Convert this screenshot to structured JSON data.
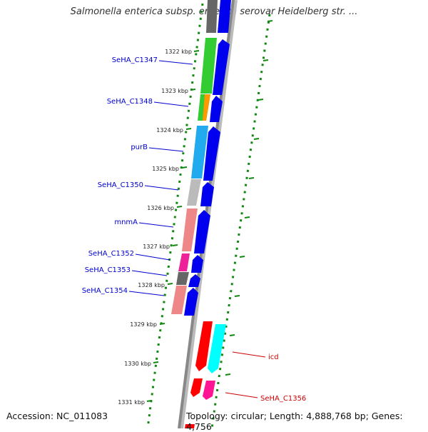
{
  "title": "Salmonella enterica subsp. enterica serovar Heidelberg str. ...",
  "footer": {
    "accession": "Accession: NC_011083",
    "summary": "Topology: circular; Length: 4,888,768 bp; Genes: 4,756"
  },
  "colors": {
    "forward_label": "#0000cc",
    "reverse_label": "#cc0000",
    "forward_strand": "#0000ee",
    "reverse_strand_red": "#ff0000",
    "reverse_strand_cyan": "#00ffff",
    "reverse_strand_magenta": "#ff1493",
    "backbone": "#888888",
    "ticks": "#118811"
  },
  "scale_ticks": [
    "1322 kbp",
    "1323 kbp",
    "1324 kbp",
    "1325 kbp",
    "1326 kbp",
    "1327 kbp",
    "1328 kbp",
    "1329 kbp",
    "1330 kbp",
    "1331 kbp"
  ],
  "gene_labels": [
    {
      "text": "SeHA_C1347",
      "strand": "forward"
    },
    {
      "text": "SeHA_C1348",
      "strand": "forward"
    },
    {
      "text": "purB",
      "strand": "forward"
    },
    {
      "text": "SeHA_C1350",
      "strand": "forward"
    },
    {
      "text": "mnmA",
      "strand": "forward"
    },
    {
      "text": "SeHA_C1352",
      "strand": "forward"
    },
    {
      "text": "SeHA_C1353",
      "strand": "forward"
    },
    {
      "text": "SeHA_C1354",
      "strand": "forward"
    },
    {
      "text": "icd",
      "strand": "reverse"
    },
    {
      "text": "SeHA_C1356",
      "strand": "reverse"
    }
  ]
}
